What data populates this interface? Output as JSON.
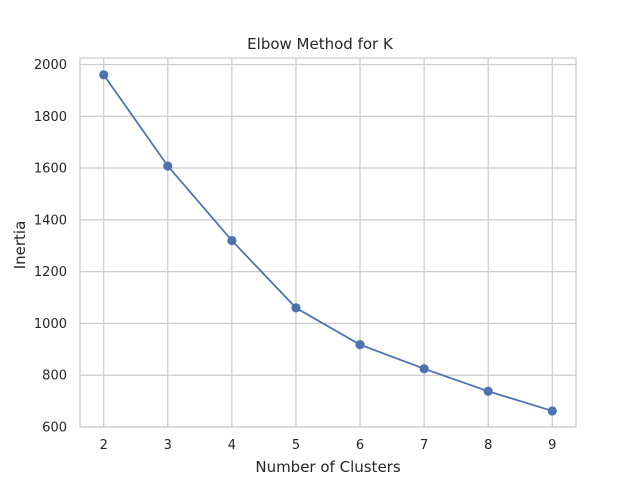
{
  "chart_data": {
    "type": "line",
    "title": "Elbow Method for K",
    "xlabel": "Number of Clusters",
    "ylabel": "Inertia",
    "x": [
      2,
      3,
      4,
      5,
      6,
      7,
      8,
      9
    ],
    "series": [
      {
        "values": [
          1960,
          1608,
          1320,
          1060,
          918,
          825,
          738,
          662
        ]
      }
    ],
    "xticks": [
      2,
      3,
      4,
      5,
      6,
      7,
      8,
      9
    ],
    "yticks": [
      600,
      800,
      1000,
      1200,
      1400,
      1600,
      1800,
      2000
    ],
    "xlim": [
      1.63,
      9.37
    ],
    "ylim": [
      600,
      2025
    ],
    "grid": true,
    "marker": "circle",
    "line_color": "#4c72b0",
    "grid_color": "#cccccc",
    "axis_color": "#cccccc",
    "text_color": "#262626"
  }
}
